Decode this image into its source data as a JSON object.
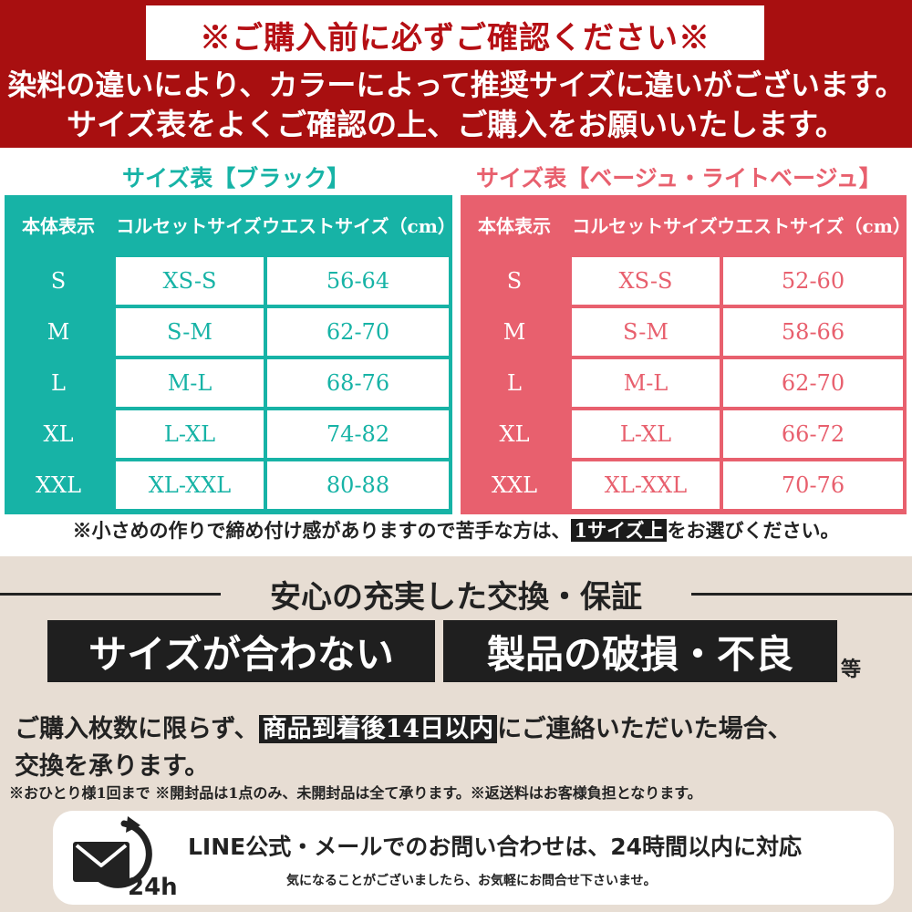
{
  "header": {
    "notice_title": "※ご購入前に必ずご確認ください※",
    "line1": "染料の違いにより、カラーによって推奨サイズに違いがございます。",
    "line2": "サイズ表をよくご確認の上、ご購入をお願いいたします。",
    "colors": {
      "background": "#a80f10",
      "title_text": "#b50f14"
    }
  },
  "tables": [
    {
      "title": "サイズ表【ブラック】",
      "color": "#17b3a6",
      "headers": [
        "本体表示",
        "コルセットサイズ",
        "ウエストサイズ（cm）"
      ],
      "rows": [
        [
          "S",
          "XS-S",
          "56-64"
        ],
        [
          "M",
          "S-M",
          "62-70"
        ],
        [
          "L",
          "M-L",
          "68-76"
        ],
        [
          "XL",
          "L-XL",
          "74-82"
        ],
        [
          "XXL",
          "XL-XXL",
          "80-88"
        ]
      ]
    },
    {
      "title": "サイズ表【ベージュ・ライトベージュ】",
      "color": "#e8606e",
      "headers": [
        "本体表示",
        "コルセットサイズ",
        "ウエストサイズ（cm）"
      ],
      "rows": [
        [
          "S",
          "XS-S",
          "52-60"
        ],
        [
          "M",
          "S-M",
          "58-66"
        ],
        [
          "L",
          "M-L",
          "62-70"
        ],
        [
          "XL",
          "L-XL",
          "66-72"
        ],
        [
          "XXL",
          "XL-XXL",
          "70-76"
        ]
      ]
    }
  ],
  "size_note": {
    "before": "※小さめの作りで締め付け感がありますので苦手な方は、",
    "highlight": "1サイズ上",
    "after": "をお選びください。"
  },
  "guarantee": {
    "title": "安心の充実した交換・保証",
    "box1": "サイズが合わない",
    "box2": "製品の破損・不良",
    "etc": "等",
    "text1_before": "ご購入枚数に限らず、",
    "text1_highlight": "商品到着後14日以内",
    "text1_after": "にご連絡いただいた場合、",
    "text2": "交換を承ります。",
    "small_note": "※おひとり様1回まで ※開封品は1点のみ、未開封品は全て承ります。※返送料はお客様負担となります。",
    "background": "#e7ddd3"
  },
  "contact": {
    "icon": "mail-24h-icon",
    "icon_label": "24h",
    "main": "LINE公式・メールでのお問い合わせは、24時間以内に対応",
    "sub": "気になることがございましたら、お気軽にお問合せ下さいませ。"
  }
}
